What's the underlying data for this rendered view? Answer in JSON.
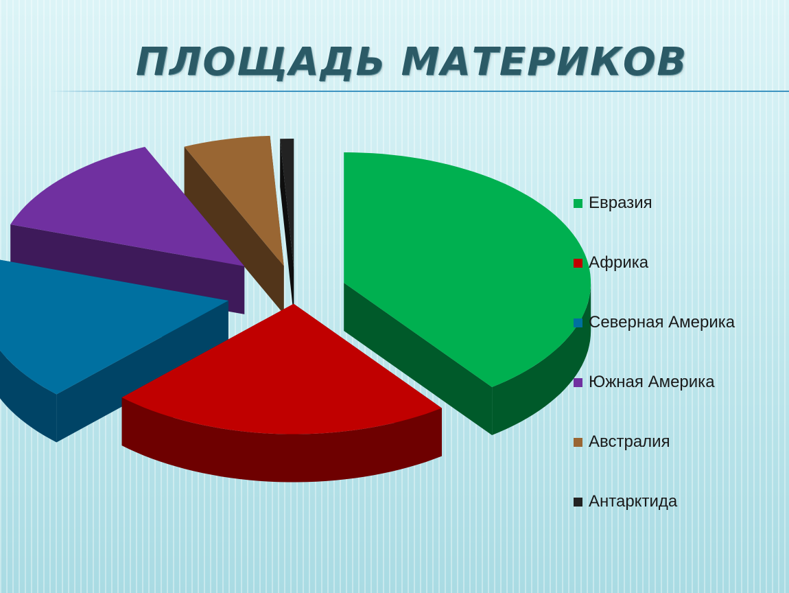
{
  "title": "ПЛОЩАДЬ МАТЕРИКОВ",
  "chart_data": {
    "type": "pie",
    "title": "ПЛОЩАДЬ МАТЕРИКОВ",
    "categories": [
      "Евразия",
      "Африка",
      "Северная Америка",
      "Южная Америка",
      "Австралия",
      "Антарктида"
    ],
    "values": [
      53.6,
      30.3,
      24.2,
      17.8,
      7.7,
      1.2
    ],
    "colors": [
      "#00b050",
      "#c00000",
      "#0070a0",
      "#7030a0",
      "#996633",
      "#222222"
    ],
    "side_colors": [
      "#005a2a",
      "#6e0000",
      "#004466",
      "#3e1a5a",
      "#52351a",
      "#0e0e0e"
    ],
    "legend_position": "right",
    "style": "3d-exploded"
  },
  "legend": [
    {
      "label": "Евразия",
      "color": "#00b050"
    },
    {
      "label": "Африка",
      "color": "#c00000"
    },
    {
      "label": "Северная Америка",
      "color": "#0070a0"
    },
    {
      "label": "Южная Америка",
      "color": "#7030a0"
    },
    {
      "label": "Австралия",
      "color": "#996633"
    },
    {
      "label": "Антарктида",
      "color": "#222222"
    }
  ]
}
